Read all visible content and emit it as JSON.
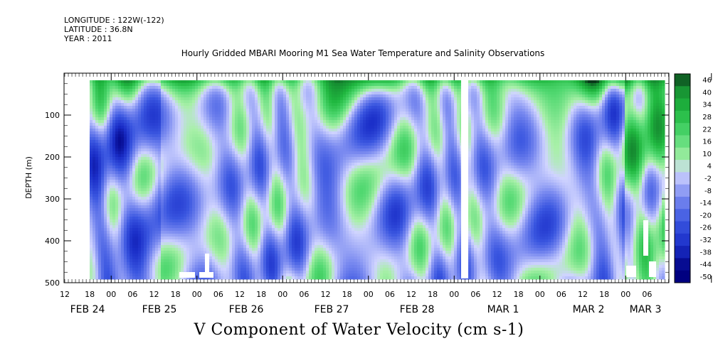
{
  "header": {
    "longitude": "LONGITUDE : 122W(-122)",
    "latitude": "LATITUDE : 36.8N",
    "year": "YEAR : 2011"
  },
  "chart_data": {
    "type": "heatmap",
    "title": "Hourly Gridded MBARI Mooring M1 Sea Water Temperature and Salinity Observations",
    "variable_title": "V Component of Water Velocity (cm s-1)",
    "ylabel": "DEPTH (m)",
    "ylim": [
      500,
      0
    ],
    "y_ticks": [
      100,
      200,
      300,
      400,
      500
    ],
    "x_hour_ticks": [
      "12",
      "18",
      "00",
      "06",
      "12",
      "18",
      "00",
      "06",
      "12",
      "18",
      "00",
      "06",
      "12",
      "18",
      "00",
      "06",
      "12",
      "18",
      "00",
      "06",
      "12",
      "18",
      "00",
      "06",
      "12",
      "18",
      "00",
      "06"
    ],
    "x_date_labels": [
      "FEB 24",
      "FEB 25",
      "FEB 26",
      "FEB 27",
      "FEB 28",
      "MAR  1",
      "MAR  2",
      "MAR  3"
    ],
    "colorbar_levels": [
      "46",
      "40",
      "34",
      "28",
      "22",
      "16",
      "10",
      "4",
      "-2",
      "-8",
      "-14",
      "-20",
      "-26",
      "-32",
      "-38",
      "-44",
      "-50"
    ],
    "colorbar_range": [
      -50,
      46
    ],
    "colors": {
      "most_negative": "#000080",
      "zero": "#d0d4ff",
      "most_positive": "#0a3a1a"
    }
  }
}
